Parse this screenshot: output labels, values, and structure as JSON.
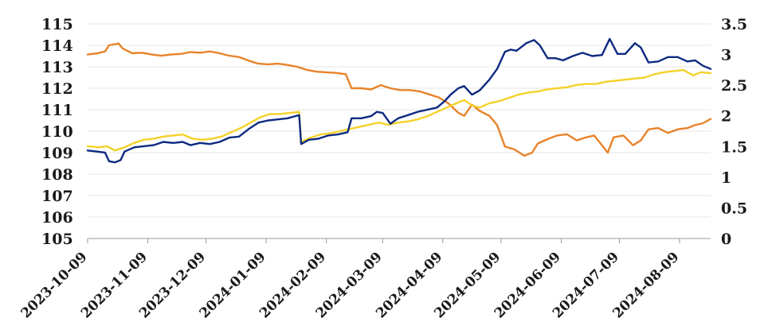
{
  "chart_data": {
    "type": "line",
    "title": "",
    "xlabel": "",
    "ylabel": "",
    "y_left": {
      "range": [
        105,
        115
      ],
      "ticks": [
        "105",
        "106",
        "107",
        "108",
        "109",
        "110",
        "111",
        "112",
        "113",
        "114",
        "115"
      ]
    },
    "y_right": {
      "range": [
        0,
        3.5
      ],
      "ticks": [
        "0",
        "0.5",
        "1",
        "1.5",
        "2",
        "2.5",
        "3",
        "3.5"
      ]
    },
    "x_ticks": [
      "2023-10-09",
      "2023-11-09",
      "2023-12-09",
      "2024-01-09",
      "2024-02-09",
      "2024-03-09",
      "2024-04-09",
      "2024-05-09",
      "2024-06-09",
      "2024-07-09",
      "2024-08-09"
    ],
    "x_range": [
      "2023-10-09",
      "2024-08-25"
    ],
    "grid": true,
    "legend": "none",
    "series": [
      {
        "axis": "left",
        "color": "#0d2a80",
        "points": [
          [
            "2023-10-09",
            109.1
          ],
          [
            "2023-10-14",
            109.05
          ],
          [
            "2023-10-18",
            109.0
          ],
          [
            "2023-10-20",
            108.6
          ],
          [
            "2023-10-23",
            108.55
          ],
          [
            "2023-10-26",
            108.65
          ],
          [
            "2023-10-28",
            109.05
          ],
          [
            "2023-11-02",
            109.25
          ],
          [
            "2023-11-07",
            109.3
          ],
          [
            "2023-11-12",
            109.35
          ],
          [
            "2023-11-17",
            109.5
          ],
          [
            "2023-11-22",
            109.45
          ],
          [
            "2023-11-27",
            109.5
          ],
          [
            "2023-12-01",
            109.35
          ],
          [
            "2023-12-06",
            109.45
          ],
          [
            "2023-12-11",
            109.4
          ],
          [
            "2023-12-16",
            109.5
          ],
          [
            "2023-12-21",
            109.7
          ],
          [
            "2023-12-26",
            109.75
          ],
          [
            "2023-12-31",
            110.1
          ],
          [
            "2024-01-05",
            110.4
          ],
          [
            "2024-01-10",
            110.5
          ],
          [
            "2024-01-15",
            110.55
          ],
          [
            "2024-01-20",
            110.6
          ],
          [
            "2024-01-24",
            110.7
          ],
          [
            "2024-01-26",
            110.75
          ],
          [
            "2024-01-27",
            109.4
          ],
          [
            "2024-01-31",
            109.6
          ],
          [
            "2024-02-05",
            109.65
          ],
          [
            "2024-02-10",
            109.8
          ],
          [
            "2024-02-15",
            109.85
          ],
          [
            "2024-02-20",
            109.95
          ],
          [
            "2024-02-22",
            110.6
          ],
          [
            "2024-02-27",
            110.6
          ],
          [
            "2024-03-03",
            110.7
          ],
          [
            "2024-03-06",
            110.9
          ],
          [
            "2024-03-09",
            110.85
          ],
          [
            "2024-03-13",
            110.35
          ],
          [
            "2024-03-17",
            110.6
          ],
          [
            "2024-03-22",
            110.75
          ],
          [
            "2024-03-27",
            110.9
          ],
          [
            "2024-04-01",
            111.0
          ],
          [
            "2024-04-06",
            111.1
          ],
          [
            "2024-04-10",
            111.4
          ],
          [
            "2024-04-13",
            111.7
          ],
          [
            "2024-04-17",
            112.0
          ],
          [
            "2024-04-20",
            112.1
          ],
          [
            "2024-04-24",
            111.7
          ],
          [
            "2024-04-28",
            111.9
          ],
          [
            "2024-05-03",
            112.4
          ],
          [
            "2024-05-07",
            112.9
          ],
          [
            "2024-05-11",
            113.7
          ],
          [
            "2024-05-14",
            113.8
          ],
          [
            "2024-05-17",
            113.75
          ],
          [
            "2024-05-22",
            114.1
          ],
          [
            "2024-05-26",
            114.25
          ],
          [
            "2024-05-29",
            114.0
          ],
          [
            "2024-06-02",
            113.4
          ],
          [
            "2024-06-06",
            113.4
          ],
          [
            "2024-06-10",
            113.3
          ],
          [
            "2024-06-15",
            113.5
          ],
          [
            "2024-06-20",
            113.65
          ],
          [
            "2024-06-25",
            113.5
          ],
          [
            "2024-06-30",
            113.55
          ],
          [
            "2024-07-04",
            114.3
          ],
          [
            "2024-07-08",
            113.6
          ],
          [
            "2024-07-12",
            113.6
          ],
          [
            "2024-07-17",
            114.1
          ],
          [
            "2024-07-20",
            113.9
          ],
          [
            "2024-07-24",
            113.2
          ],
          [
            "2024-07-29",
            113.25
          ],
          [
            "2024-08-03",
            113.45
          ],
          [
            "2024-08-08",
            113.45
          ],
          [
            "2024-08-13",
            113.25
          ],
          [
            "2024-08-17",
            113.3
          ],
          [
            "2024-08-21",
            113.05
          ],
          [
            "2024-08-25",
            112.9
          ]
        ]
      },
      {
        "axis": "left",
        "color": "#f5d12a",
        "points": [
          [
            "2023-10-09",
            109.3
          ],
          [
            "2023-10-15",
            109.25
          ],
          [
            "2023-10-19",
            109.3
          ],
          [
            "2023-10-23",
            109.1
          ],
          [
            "2023-10-28",
            109.25
          ],
          [
            "2023-11-02",
            109.45
          ],
          [
            "2023-11-07",
            109.6
          ],
          [
            "2023-11-12",
            109.65
          ],
          [
            "2023-11-17",
            109.75
          ],
          [
            "2023-11-22",
            109.8
          ],
          [
            "2023-11-27",
            109.85
          ],
          [
            "2023-12-02",
            109.65
          ],
          [
            "2023-12-07",
            109.6
          ],
          [
            "2023-12-12",
            109.65
          ],
          [
            "2023-12-17",
            109.75
          ],
          [
            "2023-12-22",
            109.95
          ],
          [
            "2023-12-27",
            110.15
          ],
          [
            "2024-01-01",
            110.4
          ],
          [
            "2024-01-06",
            110.65
          ],
          [
            "2024-01-11",
            110.8
          ],
          [
            "2024-01-16",
            110.8
          ],
          [
            "2024-01-21",
            110.85
          ],
          [
            "2024-01-26",
            110.9
          ],
          [
            "2024-01-27",
            109.5
          ],
          [
            "2024-02-01",
            109.7
          ],
          [
            "2024-02-06",
            109.85
          ],
          [
            "2024-02-11",
            109.9
          ],
          [
            "2024-02-16",
            110.0
          ],
          [
            "2024-02-21",
            110.1
          ],
          [
            "2024-02-26",
            110.2
          ],
          [
            "2024-03-02",
            110.3
          ],
          [
            "2024-03-07",
            110.4
          ],
          [
            "2024-03-12",
            110.3
          ],
          [
            "2024-03-17",
            110.4
          ],
          [
            "2024-03-22",
            110.45
          ],
          [
            "2024-03-27",
            110.55
          ],
          [
            "2024-04-01",
            110.7
          ],
          [
            "2024-04-06",
            110.9
          ],
          [
            "2024-04-11",
            111.1
          ],
          [
            "2024-04-16",
            111.3
          ],
          [
            "2024-04-20",
            111.45
          ],
          [
            "2024-04-24",
            111.2
          ],
          [
            "2024-04-28",
            111.1
          ],
          [
            "2024-05-03",
            111.3
          ],
          [
            "2024-05-08",
            111.4
          ],
          [
            "2024-05-13",
            111.55
          ],
          [
            "2024-05-18",
            111.7
          ],
          [
            "2024-05-23",
            111.8
          ],
          [
            "2024-05-28",
            111.85
          ],
          [
            "2024-06-02",
            111.95
          ],
          [
            "2024-06-07",
            112.0
          ],
          [
            "2024-06-12",
            112.05
          ],
          [
            "2024-06-17",
            112.15
          ],
          [
            "2024-06-22",
            112.2
          ],
          [
            "2024-06-27",
            112.2
          ],
          [
            "2024-07-02",
            112.3
          ],
          [
            "2024-07-07",
            112.35
          ],
          [
            "2024-07-12",
            112.4
          ],
          [
            "2024-07-17",
            112.45
          ],
          [
            "2024-07-22",
            112.5
          ],
          [
            "2024-07-27",
            112.65
          ],
          [
            "2024-08-01",
            112.75
          ],
          [
            "2024-08-06",
            112.8
          ],
          [
            "2024-08-11",
            112.85
          ],
          [
            "2024-08-16",
            112.6
          ],
          [
            "2024-08-20",
            112.75
          ],
          [
            "2024-08-25",
            112.7
          ]
        ]
      },
      {
        "axis": "right",
        "color": "#e8832a",
        "points": [
          [
            "2023-10-09",
            3.0
          ],
          [
            "2023-10-14",
            3.02
          ],
          [
            "2023-10-18",
            3.05
          ],
          [
            "2023-10-20",
            3.15
          ],
          [
            "2023-10-25",
            3.18
          ],
          [
            "2023-10-27",
            3.1
          ],
          [
            "2023-11-01",
            3.02
          ],
          [
            "2023-11-06",
            3.03
          ],
          [
            "2023-11-11",
            3.0
          ],
          [
            "2023-11-16",
            2.98
          ],
          [
            "2023-11-21",
            3.0
          ],
          [
            "2023-11-26",
            3.01
          ],
          [
            "2023-12-01",
            3.04
          ],
          [
            "2023-12-06",
            3.03
          ],
          [
            "2023-12-11",
            3.05
          ],
          [
            "2023-12-16",
            3.02
          ],
          [
            "2023-12-21",
            2.98
          ],
          [
            "2023-12-26",
            2.96
          ],
          [
            "2023-12-31",
            2.9
          ],
          [
            "2024-01-05",
            2.85
          ],
          [
            "2024-01-10",
            2.84
          ],
          [
            "2024-01-15",
            2.85
          ],
          [
            "2024-01-20",
            2.83
          ],
          [
            "2024-01-25",
            2.8
          ],
          [
            "2024-01-30",
            2.75
          ],
          [
            "2024-02-04",
            2.72
          ],
          [
            "2024-02-09",
            2.71
          ],
          [
            "2024-02-14",
            2.7
          ],
          [
            "2024-02-19",
            2.68
          ],
          [
            "2024-02-22",
            2.45
          ],
          [
            "2024-02-27",
            2.45
          ],
          [
            "2024-03-03",
            2.43
          ],
          [
            "2024-03-08",
            2.5
          ],
          [
            "2024-03-13",
            2.45
          ],
          [
            "2024-03-18",
            2.42
          ],
          [
            "2024-03-23",
            2.42
          ],
          [
            "2024-03-28",
            2.4
          ],
          [
            "2024-04-02",
            2.35
          ],
          [
            "2024-04-07",
            2.3
          ],
          [
            "2024-04-12",
            2.2
          ],
          [
            "2024-04-17",
            2.05
          ],
          [
            "2024-04-20",
            2.0
          ],
          [
            "2024-04-24",
            2.18
          ],
          [
            "2024-04-28",
            2.08
          ],
          [
            "2024-05-03",
            2.0
          ],
          [
            "2024-05-07",
            1.85
          ],
          [
            "2024-05-11",
            1.5
          ],
          [
            "2024-05-16",
            1.45
          ],
          [
            "2024-05-21",
            1.35
          ],
          [
            "2024-05-25",
            1.4
          ],
          [
            "2024-05-28",
            1.55
          ],
          [
            "2024-06-02",
            1.62
          ],
          [
            "2024-06-07",
            1.68
          ],
          [
            "2024-06-12",
            1.7
          ],
          [
            "2024-06-17",
            1.6
          ],
          [
            "2024-06-22",
            1.65
          ],
          [
            "2024-06-26",
            1.68
          ],
          [
            "2024-06-30",
            1.52
          ],
          [
            "2024-07-03",
            1.4
          ],
          [
            "2024-07-06",
            1.65
          ],
          [
            "2024-07-11",
            1.68
          ],
          [
            "2024-07-16",
            1.52
          ],
          [
            "2024-07-20",
            1.6
          ],
          [
            "2024-07-24",
            1.78
          ],
          [
            "2024-07-29",
            1.8
          ],
          [
            "2024-08-03",
            1.72
          ],
          [
            "2024-08-08",
            1.78
          ],
          [
            "2024-08-13",
            1.8
          ],
          [
            "2024-08-17",
            1.85
          ],
          [
            "2024-08-21",
            1.88
          ],
          [
            "2024-08-25",
            1.95
          ]
        ]
      }
    ]
  }
}
